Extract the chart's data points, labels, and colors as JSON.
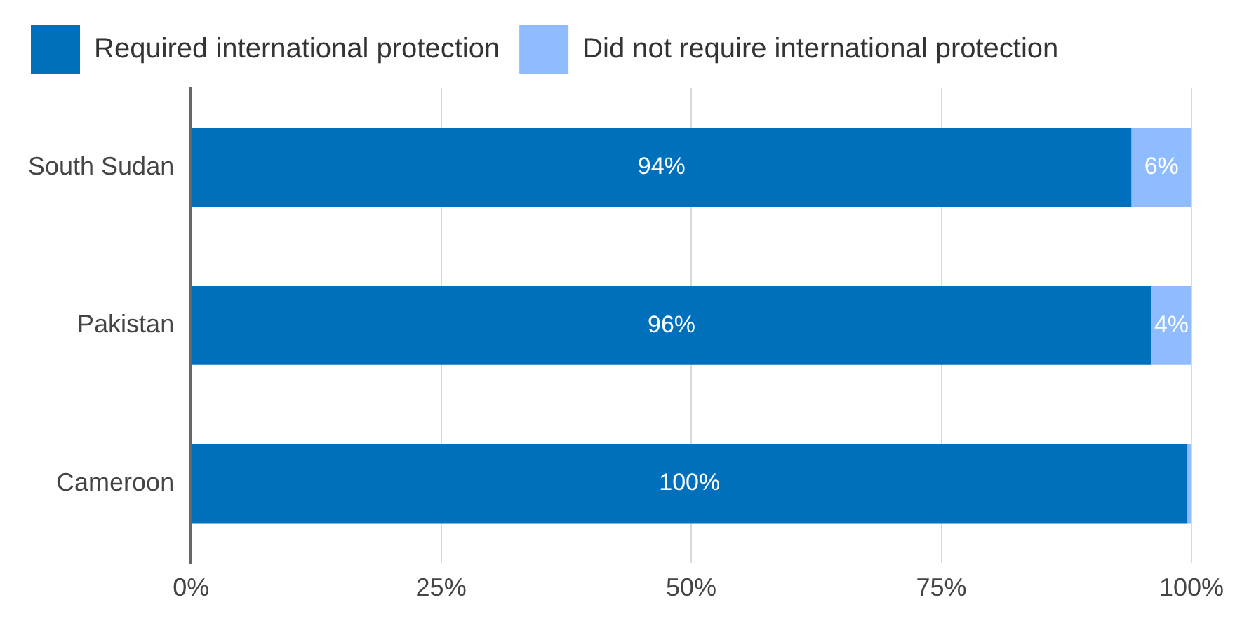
{
  "chart_data": {
    "type": "bar",
    "orientation": "horizontal",
    "stacked": true,
    "categories": [
      "South Sudan",
      "Pakistan",
      "Cameroon"
    ],
    "series": [
      {
        "name": "Required international protection",
        "color": "#0070bc",
        "values": [
          94,
          96,
          99.6
        ],
        "value_labels": [
          "94%",
          "96%",
          "100%"
        ]
      },
      {
        "name": "Did not require international protection",
        "color": "#8fbcff",
        "values": [
          6,
          4,
          0.4
        ],
        "value_labels": [
          "6%",
          "4%",
          null
        ]
      }
    ],
    "xlim": [
      0,
      100
    ],
    "xticks": [
      {
        "value": 0,
        "label": "0%"
      },
      {
        "value": 25,
        "label": "25%"
      },
      {
        "value": 50,
        "label": "50%"
      },
      {
        "value": 75,
        "label": "75%"
      },
      {
        "value": 100,
        "label": "100%"
      }
    ],
    "grid": "x",
    "legend": "top left"
  }
}
